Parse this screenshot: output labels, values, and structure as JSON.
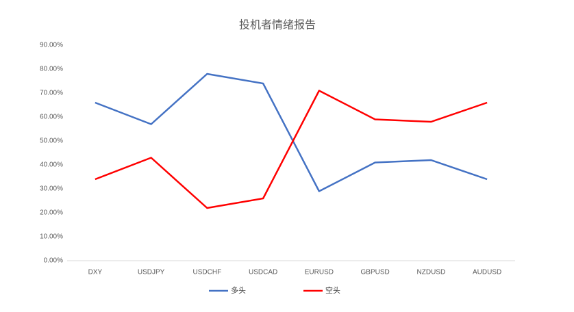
{
  "chart_data": {
    "type": "line",
    "title": "投机者情绪报告",
    "categories": [
      "DXY",
      "USDJPY",
      "USDCHF",
      "USDCAD",
      "EURUSD",
      "GBPUSD",
      "NZDUSD",
      "AUDUSD"
    ],
    "series": [
      {
        "name": "多头",
        "color": "#4472c4",
        "values": [
          66,
          57,
          78,
          74,
          29,
          41,
          42,
          34
        ]
      },
      {
        "name": "空头",
        "color": "#ff0000",
        "values": [
          34,
          43,
          22,
          26,
          71,
          59,
          58,
          66
        ]
      }
    ],
    "ylim": [
      0,
      90
    ],
    "yticks": [
      {
        "value": 0,
        "label": "0.00%"
      },
      {
        "value": 10,
        "label": "10.00%"
      },
      {
        "value": 20,
        "label": "20.00%"
      },
      {
        "value": 30,
        "label": "30.00%"
      },
      {
        "value": 40,
        "label": "40.00%"
      },
      {
        "value": 50,
        "label": "50.00%"
      },
      {
        "value": 60,
        "label": "60.00%"
      },
      {
        "value": 70,
        "label": "70.00%"
      },
      {
        "value": 80,
        "label": "80.00%"
      },
      {
        "value": 90,
        "label": "90.00%"
      }
    ],
    "legend": "bottom"
  }
}
